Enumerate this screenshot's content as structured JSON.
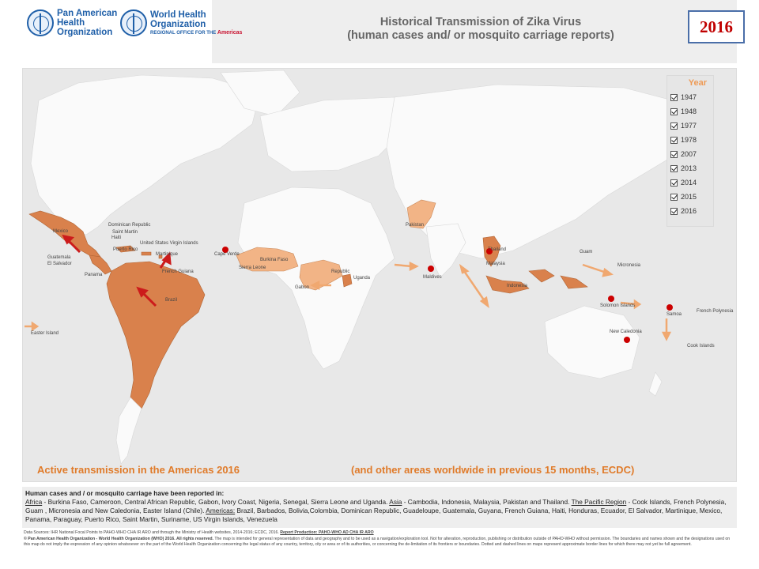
{
  "header": {
    "paho_logo": {
      "line1": "Pan American",
      "line2": "Health",
      "line3": "Organization"
    },
    "who_logo": {
      "line1": "World Health",
      "line2": "Organization",
      "sub": "REGIONAL OFFICE FOR THE",
      "sub_region": "Americas"
    },
    "title_line1": "Historical Transmission of Zika Virus",
    "title_line2": "(human cases and/ or mosquito carriage reports)",
    "year_badge": "2016"
  },
  "legend": {
    "title": "Year",
    "years": [
      "1947",
      "1948",
      "1977",
      "1978",
      "2007",
      "2013",
      "2014",
      "2015",
      "2016"
    ]
  },
  "map_labels": {
    "mexico": "Mexico",
    "guatemala": "Guatemala",
    "el_salvador": "El Salvador",
    "dominican_republic": "Dominican Republic",
    "haiti": "Haiti",
    "puerto_rico": "Puerto Rico",
    "saint_martin": "Saint Martin",
    "us_virgin_islands": "United States Virgin Islands",
    "martinique": "Martinique",
    "panama": "Panama",
    "french_guiana": "French Guiana",
    "brazil": "Brazil",
    "easter_island": "Easter Island",
    "cape_verde": "Cape Verde",
    "burkina_faso": "Burkina Faso",
    "sierra_leone": "Sierra Leone",
    "gabon": "Gabon",
    "central_african_republic": "Republic",
    "uganda": "Uganda",
    "pakistan": "Pakistan",
    "maldives": "Maldives",
    "thailand": "Thailand",
    "malaysia": "Malaysia",
    "indonesia": "Indonesia",
    "guam": "Guam",
    "micronesia": "Micronesia",
    "solomon_islands": "Solomon Islands",
    "samoa": "Samoa",
    "new_caledonia": "New Caledonia",
    "french_polynesia": "French Polynesia",
    "cook_islands": "Cook Islands"
  },
  "captions": {
    "left": "Active transmission in the Americas 2016",
    "right": "(and other areas worldwide in previous 15 months, ECDC)"
  },
  "notes": {
    "heading": "Human cases and / or mosquito carriage have been reported in:",
    "africa_label": "Africa",
    "africa_text": " - Burkina Faso, Cameroon, Central African Republic, Gabon, Ivory Coast, Nigeria, Senegal, Sierra Leone and Uganda. ",
    "asia_label": "Asia",
    "asia_text": " - Cambodia, Indonesia, Malaysia, Pakistan and Thailand. ",
    "pacific_label": "The Pacific Region",
    "pacific_text": " - Cook Islands, French Polynesia, Guam , Micronesia and New Caledonia,  Easter Island (Chile). ",
    "americas_label": "Americas:",
    "americas_text": "  Brazil, Barbados, Bolivia,Colombia, Dominican Republic, Guadeloupe, Guatemala, Guyana, French Guiana, Haiti, Honduras, Ecuador, El Salvador, Martinique, Mexico, Panama, Paraguay, Puerto Rico, Saint Martin, Suriname, US Virgin Islands, Venezuela"
  },
  "footer": {
    "sources_text": "Data Sources: IHR National Focal Points to PAHO-WHO CHA IR ARO and through the Ministry of Health websites, 2014-2016; ECDC, 2016. ",
    "production_label": "Report Production: PAHO-WHO AD CHA IR ARO",
    "copyright": "© Pan American Health Organization - World Health Organization (WHO) 2016. All rights reserved.",
    "disclaimer": " The map is intended for general representation of data and geography and to be used as a navigation/exploration tool. Not for alteration, reproduction, publishing or distribution outside of PAHO-WHO without permission. The boundaries and names shown and the designations used on this map do not imply the expression of any opinion whatsoever on the part of the World Health Organization concerning the legal status of any country, territory, city or area or of its authorities, or concerning the de-limitation of its frontiers or boundaries. Dotted and dashed lines on maps represent approximate border lines for which there may not yet be full agreement."
  },
  "colors": {
    "active_2016": "#d9814c",
    "previous_years": "#f2b486",
    "land": "#fafafa",
    "ocean": "#e8e8e8",
    "marker": "#cc0000",
    "arrow_red": "#cc1b1b",
    "arrow_orange": "#f0a870"
  }
}
